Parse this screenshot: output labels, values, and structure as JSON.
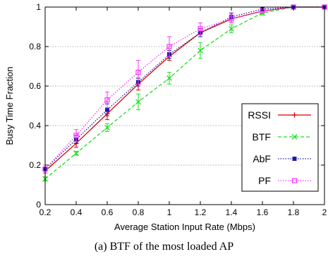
{
  "caption": "(a) BTF of the most loaded AP",
  "chart_data": {
    "type": "line",
    "xlabel": "Average Station Input Rate (Mbps)",
    "ylabel": "Busy Time Fraction",
    "xlim": [
      0.2,
      2.0
    ],
    "ylim": [
      0,
      1
    ],
    "xticks": [
      "0.2",
      "0.4",
      "0.6",
      "0.8",
      "1",
      "1.2",
      "1.4",
      "1.6",
      "1.8",
      "2"
    ],
    "yticks": [
      "0",
      "0.2",
      "0.4",
      "0.6",
      "0.8",
      "1"
    ],
    "grid": "horizontal",
    "legend_position": "right-middle",
    "x": [
      0.2,
      0.4,
      0.6,
      0.8,
      1.0,
      1.2,
      1.4,
      1.6,
      1.8,
      2.0
    ],
    "series": [
      {
        "name": "RSSI",
        "color": "#d40000",
        "line_style": "solid",
        "marker": "plus",
        "values": [
          0.17,
          0.31,
          0.46,
          0.61,
          0.75,
          0.87,
          0.94,
          0.98,
          1.0,
          1.0
        ],
        "errors": [
          0.01,
          0.02,
          0.03,
          0.03,
          0.02,
          0.02,
          0.02,
          0.01,
          0.0,
          0.0
        ]
      },
      {
        "name": "BTF",
        "color": "#22dd22",
        "line_style": "dashed",
        "marker": "x",
        "values": [
          0.13,
          0.26,
          0.39,
          0.52,
          0.64,
          0.78,
          0.89,
          0.97,
          1.0,
          1.0
        ],
        "errors": [
          0.01,
          0.01,
          0.02,
          0.04,
          0.03,
          0.04,
          0.02,
          0.01,
          0.0,
          0.0
        ]
      },
      {
        "name": "AbF",
        "color": "#1a1aaa",
        "line_style": "dotted",
        "marker": "square-filled",
        "values": [
          0.18,
          0.33,
          0.48,
          0.62,
          0.76,
          0.87,
          0.95,
          0.99,
          1.0,
          1.0
        ],
        "errors": [
          0.01,
          0.02,
          0.03,
          0.02,
          0.02,
          0.02,
          0.02,
          0.01,
          0.0,
          0.0
        ]
      },
      {
        "name": "PF",
        "color": "#ff33ff",
        "line_style": "dotted",
        "marker": "square-open",
        "values": [
          0.18,
          0.35,
          0.53,
          0.67,
          0.8,
          0.89,
          0.94,
          0.98,
          1.0,
          1.0
        ],
        "errors": [
          0.02,
          0.03,
          0.04,
          0.06,
          0.05,
          0.03,
          0.02,
          0.01,
          0.0,
          0.0
        ]
      }
    ]
  }
}
